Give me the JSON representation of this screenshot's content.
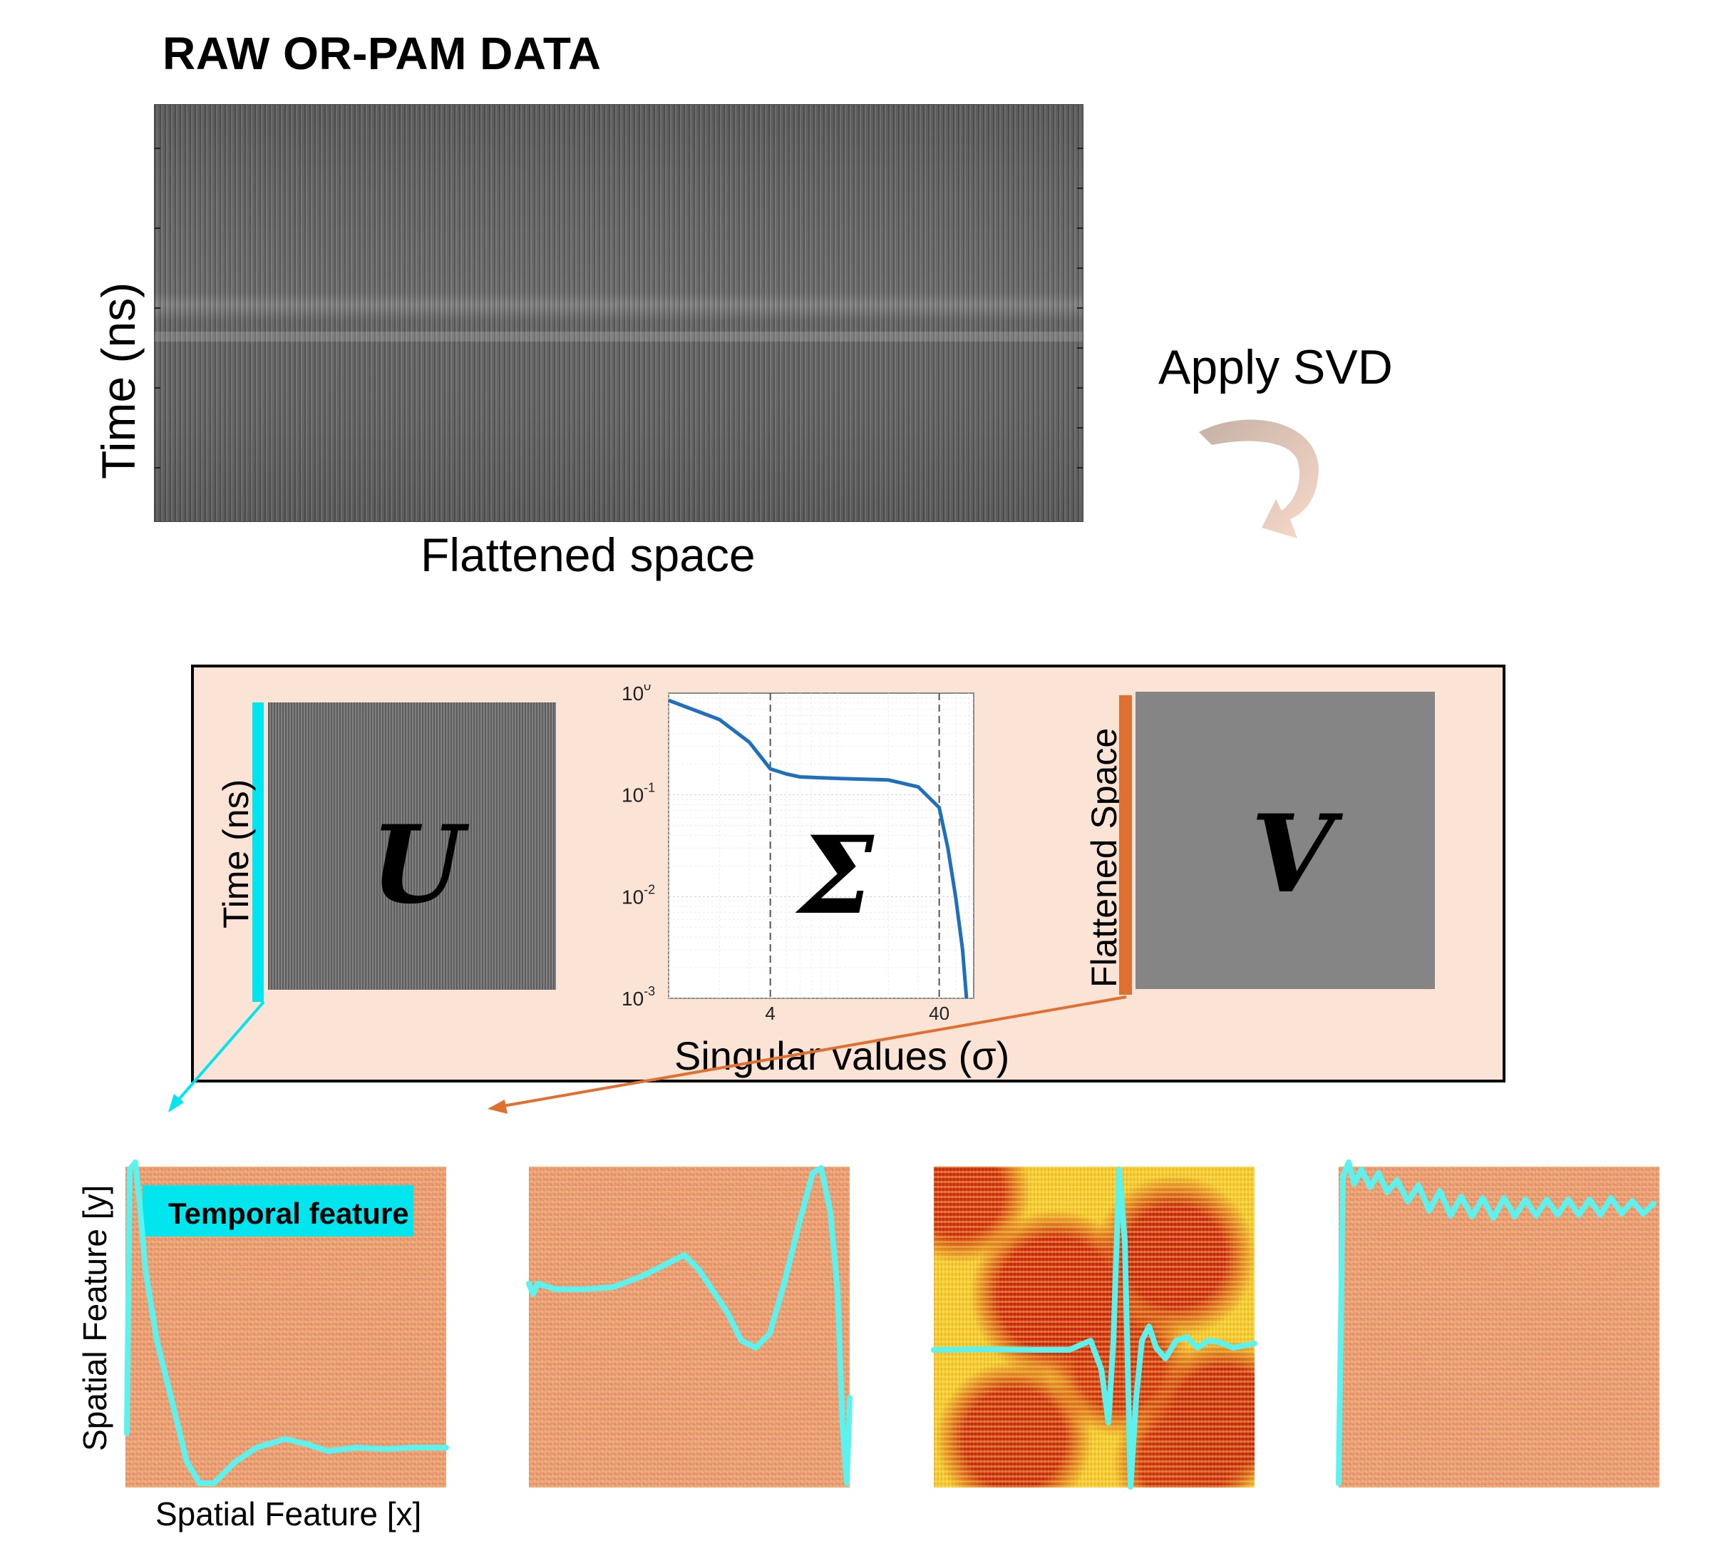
{
  "raw": {
    "title": "RAW OR-PAM DATA",
    "ylabel": "Time (ns)",
    "xlabel": "Flattened space"
  },
  "arrow_label": "Apply SVD",
  "svd": {
    "u_axis_label": "Time (ns)",
    "u_symbol": "U",
    "sigma_symbol": "Σ",
    "v_axis_label": "Flattened Space",
    "v_symbol": "V",
    "sigma_xlabel": "Singular values (σ)",
    "colors": {
      "u_bar": "#00e5ee",
      "v_bar": "#e07030",
      "box_bg": "#fbe3d6",
      "curve": "#1f6fbf"
    }
  },
  "chart_data": {
    "type": "line",
    "xscale": "log",
    "yscale": "log",
    "xlim": [
      1,
      64
    ],
    "ylim": [
      0.001,
      1
    ],
    "y_ticks": [
      {
        "base": "10",
        "exp": "0"
      },
      {
        "base": "10",
        "exp": "-1"
      },
      {
        "base": "10",
        "exp": "-2"
      },
      {
        "base": "10",
        "exp": "-3"
      }
    ],
    "x_ticks": [
      "4",
      "40"
    ],
    "vlines": [
      4,
      40
    ],
    "grid": true,
    "series": [
      {
        "x": [
          1,
          2,
          3,
          4,
          5,
          6,
          10,
          20,
          30,
          40,
          45,
          50,
          55,
          58
        ],
        "y": [
          0.85,
          0.55,
          0.33,
          0.18,
          0.16,
          0.15,
          0.145,
          0.14,
          0.12,
          0.075,
          0.03,
          0.01,
          0.003,
          0.001
        ]
      }
    ]
  },
  "bottom": {
    "feature_label": "Temporal feature",
    "ylabel": "Spatial Feature [y]",
    "xlabel": "Spatial Feature [x]",
    "trace_color": "#5ef2ee"
  }
}
